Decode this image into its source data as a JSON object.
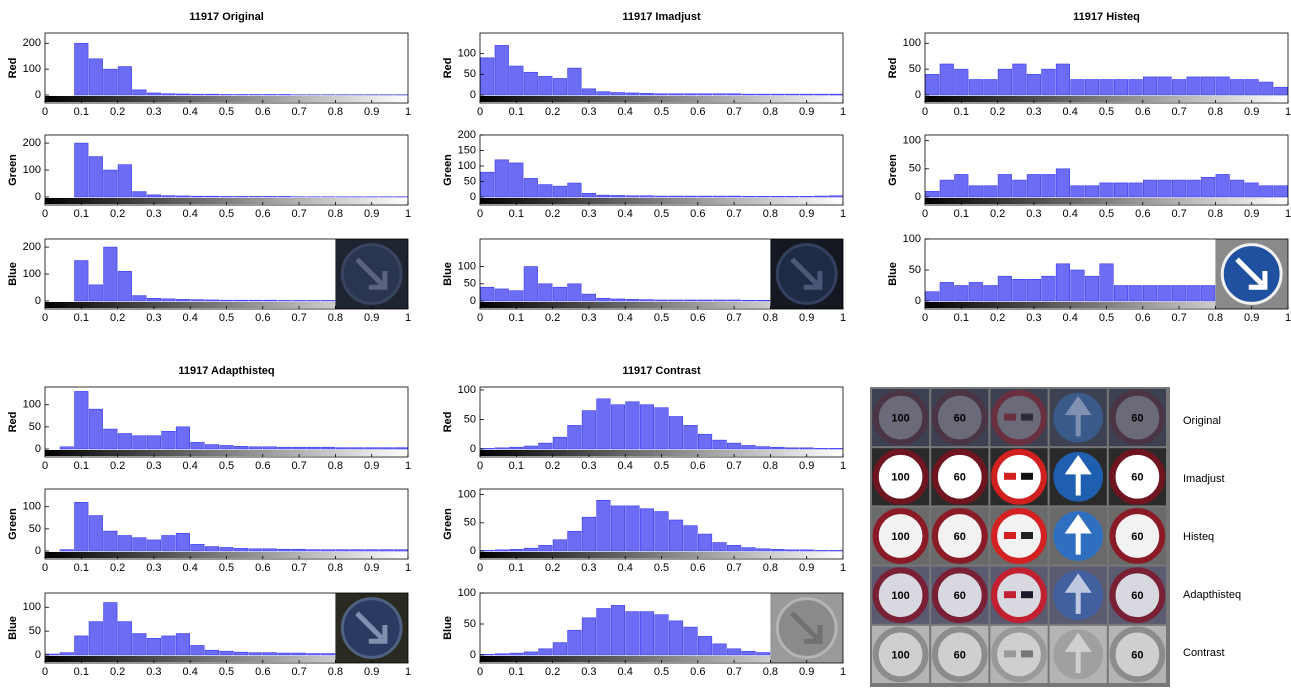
{
  "chart_data": [
    {
      "type": "histogram",
      "title": "11917 Original",
      "ylabel": "Red",
      "bins": [
        0,
        0.04,
        0.08,
        0.12,
        0.16,
        0.2,
        0.24,
        0.28,
        0.32,
        0.36,
        0.4,
        0.44,
        0.48,
        0.52,
        0.56,
        0.6,
        0.64,
        0.68,
        0.72,
        0.76,
        0.8,
        0.84,
        0.88,
        0.92,
        0.96,
        1
      ],
      "values": [
        0,
        0,
        200,
        140,
        100,
        110,
        20,
        8,
        5,
        4,
        3,
        3,
        2,
        2,
        2,
        2,
        2,
        1,
        1,
        1,
        1,
        1,
        1,
        1,
        1
      ],
      "color": "#3b3bf0",
      "xlim": [
        0,
        1
      ],
      "ylim": [
        0,
        240
      ],
      "xticks": [
        0,
        0.1,
        0.2,
        0.3,
        0.4,
        0.5,
        0.6,
        0.7,
        0.8,
        0.9,
        1
      ],
      "yticks": [
        0,
        100,
        200
      ]
    },
    {
      "type": "histogram",
      "ylabel": "Green",
      "bins": [
        0,
        0.04,
        0.08,
        0.12,
        0.16,
        0.2,
        0.24,
        0.28,
        0.32,
        0.36,
        0.4,
        0.44,
        0.48,
        0.52,
        0.56,
        0.6,
        0.64,
        0.68,
        0.72,
        0.76,
        0.8,
        0.84,
        0.88,
        0.92,
        0.96,
        1
      ],
      "values": [
        0,
        0,
        200,
        150,
        100,
        120,
        20,
        8,
        5,
        4,
        3,
        3,
        2,
        2,
        2,
        2,
        2,
        1,
        1,
        1,
        1,
        1,
        1,
        1,
        1
      ],
      "color": "#3b3bf0",
      "xlim": [
        0,
        1
      ],
      "ylim": [
        0,
        230
      ],
      "xticks": [
        0,
        0.1,
        0.2,
        0.3,
        0.4,
        0.5,
        0.6,
        0.7,
        0.8,
        0.9,
        1
      ],
      "yticks": [
        0,
        100,
        200
      ]
    },
    {
      "type": "histogram",
      "ylabel": "Blue",
      "bins": [
        0,
        0.04,
        0.08,
        0.12,
        0.16,
        0.2,
        0.24,
        0.28,
        0.32,
        0.36,
        0.4,
        0.44,
        0.48,
        0.52,
        0.56,
        0.6,
        0.64,
        0.68,
        0.72,
        0.76,
        0.8,
        0.84,
        0.88,
        0.92,
        0.96,
        1
      ],
      "values": [
        0,
        0,
        150,
        60,
        200,
        110,
        20,
        10,
        8,
        6,
        5,
        4,
        3,
        3,
        3,
        3,
        2,
        2,
        2,
        2,
        1,
        1,
        1,
        1,
        1
      ],
      "color": "#3b3bf0",
      "xlim": [
        0,
        1
      ],
      "ylim": [
        0,
        230
      ],
      "xticks": [
        0,
        0.1,
        0.2,
        0.3,
        0.4,
        0.5,
        0.6,
        0.7,
        0.8,
        0.9,
        1
      ],
      "yticks": [
        0,
        100,
        200
      ]
    },
    {
      "type": "histogram",
      "title": "11917 Imadjust",
      "ylabel": "Red",
      "bins": [
        0,
        0.04,
        0.08,
        0.12,
        0.16,
        0.2,
        0.24,
        0.28,
        0.32,
        0.36,
        0.4,
        0.44,
        0.48,
        0.52,
        0.56,
        0.6,
        0.64,
        0.68,
        0.72,
        0.76,
        0.8,
        0.84,
        0.88,
        0.92,
        0.96,
        1
      ],
      "values": [
        90,
        120,
        70,
        55,
        45,
        40,
        65,
        15,
        8,
        6,
        5,
        4,
        3,
        3,
        3,
        3,
        3,
        3,
        2,
        2,
        2,
        2,
        2,
        2,
        2
      ],
      "color": "#3b3bf0",
      "xlim": [
        0,
        1
      ],
      "ylim": [
        0,
        150
      ],
      "xticks": [
        0,
        0.1,
        0.2,
        0.3,
        0.4,
        0.5,
        0.6,
        0.7,
        0.8,
        0.9,
        1
      ],
      "yticks": [
        0,
        50,
        100
      ]
    },
    {
      "type": "histogram",
      "ylabel": "Green",
      "bins": [
        0,
        0.04,
        0.08,
        0.12,
        0.16,
        0.2,
        0.24,
        0.28,
        0.32,
        0.36,
        0.4,
        0.44,
        0.48,
        0.52,
        0.56,
        0.6,
        0.64,
        0.68,
        0.72,
        0.76,
        0.8,
        0.84,
        0.88,
        0.92,
        0.96,
        1
      ],
      "values": [
        80,
        120,
        110,
        60,
        40,
        35,
        45,
        12,
        6,
        5,
        4,
        4,
        3,
        3,
        3,
        3,
        3,
        3,
        2,
        2,
        2,
        2,
        2,
        3,
        4
      ],
      "color": "#3b3bf0",
      "xlim": [
        0,
        1
      ],
      "ylim": [
        0,
        200
      ],
      "xticks": [
        0,
        0.1,
        0.2,
        0.3,
        0.4,
        0.5,
        0.6,
        0.7,
        0.8,
        0.9,
        1
      ],
      "yticks": [
        0,
        50,
        100,
        150,
        200
      ]
    },
    {
      "type": "histogram",
      "ylabel": "Blue",
      "bins": [
        0,
        0.04,
        0.08,
        0.12,
        0.16,
        0.2,
        0.24,
        0.28,
        0.32,
        0.36,
        0.4,
        0.44,
        0.48,
        0.52,
        0.56,
        0.6,
        0.64,
        0.68,
        0.72,
        0.76,
        0.8,
        0.84,
        0.88,
        0.92,
        0.96,
        1
      ],
      "values": [
        40,
        35,
        30,
        100,
        50,
        40,
        50,
        20,
        8,
        6,
        5,
        4,
        3,
        3,
        3,
        3,
        3,
        3,
        2,
        2,
        2,
        2,
        2,
        2,
        2
      ],
      "color": "#3b3bf0",
      "xlim": [
        0,
        1
      ],
      "ylim": [
        0,
        180
      ],
      "xticks": [
        0,
        0.1,
        0.2,
        0.3,
        0.4,
        0.5,
        0.6,
        0.7,
        0.8,
        0.9,
        1
      ],
      "yticks": [
        0,
        50,
        100
      ]
    },
    {
      "type": "histogram",
      "title": "11917 Histeq",
      "ylabel": "Red",
      "bins": [
        0,
        0.04,
        0.08,
        0.12,
        0.16,
        0.2,
        0.24,
        0.28,
        0.32,
        0.36,
        0.4,
        0.44,
        0.48,
        0.52,
        0.56,
        0.6,
        0.64,
        0.68,
        0.72,
        0.76,
        0.8,
        0.84,
        0.88,
        0.92,
        0.96,
        1
      ],
      "values": [
        40,
        60,
        50,
        30,
        30,
        50,
        60,
        40,
        50,
        60,
        30,
        30,
        30,
        30,
        30,
        35,
        35,
        30,
        35,
        35,
        35,
        30,
        30,
        25,
        15
      ],
      "color": "#3b3bf0",
      "xlim": [
        0,
        1
      ],
      "ylim": [
        0,
        120
      ],
      "xticks": [
        0,
        0.1,
        0.2,
        0.3,
        0.4,
        0.5,
        0.6,
        0.7,
        0.8,
        0.9,
        1
      ],
      "yticks": [
        0,
        50,
        100
      ]
    },
    {
      "type": "histogram",
      "ylabel": "Green",
      "bins": [
        0,
        0.04,
        0.08,
        0.12,
        0.16,
        0.2,
        0.24,
        0.28,
        0.32,
        0.36,
        0.4,
        0.44,
        0.48,
        0.52,
        0.56,
        0.6,
        0.64,
        0.68,
        0.72,
        0.76,
        0.8,
        0.84,
        0.88,
        0.92,
        0.96,
        1
      ],
      "values": [
        10,
        30,
        40,
        20,
        20,
        40,
        30,
        40,
        40,
        50,
        20,
        20,
        25,
        25,
        25,
        30,
        30,
        30,
        30,
        35,
        40,
        30,
        25,
        20,
        20
      ],
      "color": "#3b3bf0",
      "xlim": [
        0,
        1
      ],
      "ylim": [
        0,
        110
      ],
      "xticks": [
        0,
        0.1,
        0.2,
        0.3,
        0.4,
        0.5,
        0.6,
        0.7,
        0.8,
        0.9,
        1
      ],
      "yticks": [
        0,
        50,
        100
      ]
    },
    {
      "type": "histogram",
      "ylabel": "Blue",
      "bins": [
        0,
        0.04,
        0.08,
        0.12,
        0.16,
        0.2,
        0.24,
        0.28,
        0.32,
        0.36,
        0.4,
        0.44,
        0.48,
        0.52,
        0.56,
        0.6,
        0.64,
        0.68,
        0.72,
        0.76,
        0.8,
        0.84,
        0.88,
        0.92,
        0.96,
        1
      ],
      "values": [
        15,
        30,
        25,
        30,
        25,
        40,
        35,
        35,
        40,
        60,
        50,
        40,
        60,
        25,
        25,
        25,
        25,
        25,
        25,
        25,
        20,
        25,
        25,
        20,
        15
      ],
      "color": "#3b3bf0",
      "xlim": [
        0,
        1
      ],
      "ylim": [
        0,
        100
      ],
      "xticks": [
        0,
        0.1,
        0.2,
        0.3,
        0.4,
        0.5,
        0.6,
        0.7,
        0.8,
        0.9,
        1
      ],
      "yticks": [
        0,
        50,
        100
      ]
    },
    {
      "type": "histogram",
      "title": "11917 Adapthisteq",
      "ylabel": "Red",
      "bins": [
        0,
        0.04,
        0.08,
        0.12,
        0.16,
        0.2,
        0.24,
        0.28,
        0.32,
        0.36,
        0.4,
        0.44,
        0.48,
        0.52,
        0.56,
        0.6,
        0.64,
        0.68,
        0.72,
        0.76,
        0.8,
        0.84,
        0.88,
        0.92,
        0.96,
        1
      ],
      "values": [
        0,
        5,
        130,
        90,
        45,
        35,
        30,
        30,
        40,
        50,
        15,
        10,
        8,
        6,
        5,
        5,
        4,
        4,
        4,
        4,
        3,
        3,
        3,
        3,
        3
      ],
      "color": "#3b3bf0",
      "xlim": [
        0,
        1
      ],
      "ylim": [
        0,
        140
      ],
      "xticks": [
        0,
        0.1,
        0.2,
        0.3,
        0.4,
        0.5,
        0.6,
        0.7,
        0.8,
        0.9,
        1
      ],
      "yticks": [
        0,
        50,
        100
      ]
    },
    {
      "type": "histogram",
      "ylabel": "Green",
      "bins": [
        0,
        0.04,
        0.08,
        0.12,
        0.16,
        0.2,
        0.24,
        0.28,
        0.32,
        0.36,
        0.4,
        0.44,
        0.48,
        0.52,
        0.56,
        0.6,
        0.64,
        0.68,
        0.72,
        0.76,
        0.8,
        0.84,
        0.88,
        0.92,
        0.96,
        1
      ],
      "values": [
        0,
        3,
        110,
        80,
        45,
        35,
        30,
        25,
        35,
        40,
        15,
        10,
        8,
        6,
        5,
        5,
        4,
        4,
        3,
        3,
        3,
        3,
        3,
        3,
        3
      ],
      "color": "#3b3bf0",
      "xlim": [
        0,
        1
      ],
      "ylim": [
        0,
        140
      ],
      "xticks": [
        0,
        0.1,
        0.2,
        0.3,
        0.4,
        0.5,
        0.6,
        0.7,
        0.8,
        0.9,
        1
      ],
      "yticks": [
        0,
        50,
        100
      ]
    },
    {
      "type": "histogram",
      "ylabel": "Blue",
      "bins": [
        0,
        0.04,
        0.08,
        0.12,
        0.16,
        0.2,
        0.24,
        0.28,
        0.32,
        0.36,
        0.4,
        0.44,
        0.48,
        0.52,
        0.56,
        0.6,
        0.64,
        0.68,
        0.72,
        0.76,
        0.8,
        0.84,
        0.88,
        0.92,
        0.96,
        1
      ],
      "values": [
        2,
        5,
        40,
        70,
        110,
        70,
        45,
        35,
        40,
        45,
        20,
        10,
        8,
        6,
        5,
        5,
        4,
        4,
        3,
        3,
        3,
        3,
        3,
        3,
        3
      ],
      "color": "#3b3bf0",
      "xlim": [
        0,
        1
      ],
      "ylim": [
        0,
        130
      ],
      "xticks": [
        0,
        0.1,
        0.2,
        0.3,
        0.4,
        0.5,
        0.6,
        0.7,
        0.8,
        0.9,
        1
      ],
      "yticks": [
        0,
        50,
        100
      ]
    },
    {
      "type": "histogram",
      "title": "11917 Contrast",
      "ylabel": "Red",
      "bins": [
        0,
        0.04,
        0.08,
        0.12,
        0.16,
        0.2,
        0.24,
        0.28,
        0.32,
        0.36,
        0.4,
        0.44,
        0.48,
        0.52,
        0.56,
        0.6,
        0.64,
        0.68,
        0.72,
        0.76,
        0.8,
        0.84,
        0.88,
        0.92,
        0.96,
        1
      ],
      "values": [
        1,
        2,
        3,
        5,
        10,
        20,
        40,
        65,
        85,
        75,
        80,
        75,
        70,
        55,
        40,
        25,
        15,
        10,
        6,
        4,
        3,
        2,
        2,
        1,
        1
      ],
      "color": "#3b3bf0",
      "xlim": [
        0,
        1
      ],
      "ylim": [
        0,
        105
      ],
      "xticks": [
        0,
        0.1,
        0.2,
        0.3,
        0.4,
        0.5,
        0.6,
        0.7,
        0.8,
        0.9,
        1
      ],
      "yticks": [
        0,
        50,
        100
      ]
    },
    {
      "type": "histogram",
      "ylabel": "Green",
      "bins": [
        0,
        0.04,
        0.08,
        0.12,
        0.16,
        0.2,
        0.24,
        0.28,
        0.32,
        0.36,
        0.4,
        0.44,
        0.48,
        0.52,
        0.56,
        0.6,
        0.64,
        0.68,
        0.72,
        0.76,
        0.8,
        0.84,
        0.88,
        0.92,
        0.96,
        1
      ],
      "values": [
        1,
        2,
        3,
        5,
        10,
        20,
        35,
        60,
        90,
        80,
        80,
        75,
        70,
        55,
        45,
        30,
        15,
        10,
        6,
        4,
        3,
        2,
        2,
        1,
        1
      ],
      "color": "#3b3bf0",
      "xlim": [
        0,
        1
      ],
      "ylim": [
        0,
        110
      ],
      "xticks": [
        0,
        0.1,
        0.2,
        0.3,
        0.4,
        0.5,
        0.6,
        0.7,
        0.8,
        0.9,
        1
      ],
      "yticks": [
        0,
        50,
        100
      ]
    },
    {
      "type": "histogram",
      "ylabel": "Blue",
      "bins": [
        0,
        0.04,
        0.08,
        0.12,
        0.16,
        0.2,
        0.24,
        0.28,
        0.32,
        0.36,
        0.4,
        0.44,
        0.48,
        0.52,
        0.56,
        0.6,
        0.64,
        0.68,
        0.72,
        0.76,
        0.8,
        0.84,
        0.88,
        0.92,
        0.96,
        1
      ],
      "values": [
        1,
        2,
        3,
        5,
        10,
        20,
        40,
        60,
        75,
        80,
        70,
        70,
        65,
        55,
        45,
        30,
        18,
        10,
        6,
        4,
        3,
        2,
        2,
        1,
        1
      ],
      "color": "#3b3bf0",
      "xlim": [
        0,
        1
      ],
      "ylim": [
        0,
        100
      ],
      "xticks": [
        0,
        0.1,
        0.2,
        0.3,
        0.4,
        0.5,
        0.6,
        0.7,
        0.8,
        0.9,
        1
      ],
      "yticks": [
        0,
        50,
        100
      ]
    }
  ],
  "image_grid": {
    "rows": [
      "Original",
      "Imadjust",
      "Histeq",
      "Adapthisteq",
      "Contrast"
    ],
    "sign_texts": [
      "100",
      "60"
    ]
  }
}
